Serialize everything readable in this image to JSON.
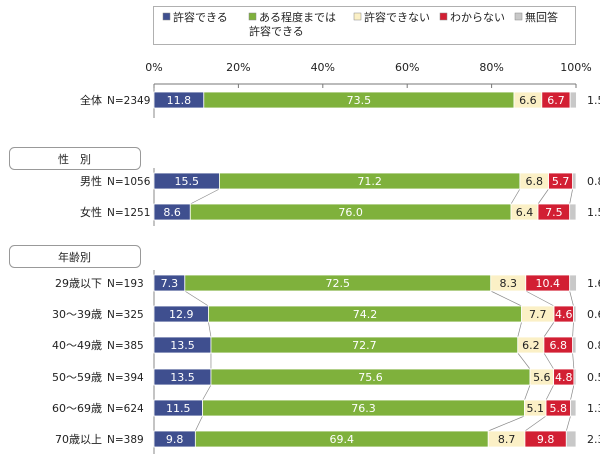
{
  "chart_data": {
    "type": "bar",
    "stacked": true,
    "orientation": "horizontal",
    "xlim": [
      0,
      100
    ],
    "x_ticks": [
      "0%",
      "20%",
      "40%",
      "60%",
      "80%",
      "100%"
    ],
    "legend_position": "top",
    "series": [
      {
        "name": "許容できる",
        "color": "#3f4f8f"
      },
      {
        "name": "ある程度までは許容できる",
        "name_lines": [
          "ある程度までは",
          "許容できる"
        ],
        "color": "#7fb13c"
      },
      {
        "name": "許容できない",
        "color": "#fbf0c6"
      },
      {
        "name": "わからない",
        "color": "#d21f33"
      },
      {
        "name": "無回答",
        "color": "#c8c8c8"
      }
    ],
    "groups": [
      {
        "label": "",
        "rows": [
          {
            "label": "全体",
            "n": "N=2349",
            "values": [
              11.8,
              73.5,
              6.6,
              6.7,
              1.5
            ]
          }
        ]
      },
      {
        "label": "性　別",
        "rows": [
          {
            "label": "男性",
            "n": "N=1056",
            "values": [
              15.5,
              71.2,
              6.8,
              5.7,
              0.8
            ]
          },
          {
            "label": "女性",
            "n": "N=1251",
            "values": [
              8.6,
              76.0,
              6.4,
              7.5,
              1.5
            ]
          }
        ]
      },
      {
        "label": "年齢別",
        "rows": [
          {
            "label": "29歳以下",
            "n": "N=193",
            "values": [
              7.3,
              72.5,
              8.3,
              10.4,
              1.6
            ]
          },
          {
            "label": "30～39歳",
            "n": "N=325",
            "values": [
              12.9,
              74.2,
              7.7,
              4.6,
              0.6
            ]
          },
          {
            "label": "40～49歳",
            "n": "N=385",
            "values": [
              13.5,
              72.7,
              6.2,
              6.8,
              0.8
            ]
          },
          {
            "label": "50～59歳",
            "n": "N=394",
            "values": [
              13.5,
              75.6,
              5.6,
              4.8,
              0.5
            ]
          },
          {
            "label": "60～69歳",
            "n": "N=624",
            "values": [
              11.5,
              76.3,
              5.1,
              5.8,
              1.3
            ]
          },
          {
            "label": "70歳以上",
            "n": "N=389",
            "values": [
              9.8,
              69.4,
              8.7,
              9.8,
              2.3
            ]
          }
        ]
      }
    ]
  }
}
